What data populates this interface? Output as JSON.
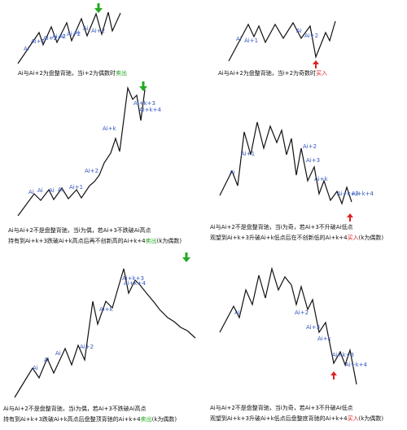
{
  "colors": {
    "line": "#111111",
    "label": "#3355bb",
    "sell": "#22aa22",
    "buy": "#dd2222"
  },
  "panels": [
    {
      "id": "p1",
      "labels": [
        {
          "t": "Ai"
        },
        {
          "t": "Ai+1"
        },
        {
          "t": "Ai+2"
        },
        {
          "t": "Ai+2"
        },
        {
          "t": "Ai"
        },
        {
          "t": "Ai+2"
        },
        {
          "t": "Ai"
        },
        {
          "t": "Ai"
        },
        {
          "t": "Ai+2"
        }
      ],
      "arrow": "down",
      "caption": {
        "lines": [
          {
            "a": "Ai与Ai+2为盘整背驰，当i+2为偶数时",
            "h": "卖出",
            "hc": "sell",
            "b": ""
          }
        ]
      }
    },
    {
      "id": "p2",
      "labels": [
        {
          "t": "Ai"
        },
        {
          "t": "Ai+1"
        },
        {
          "t": "Ai"
        },
        {
          "t": "Ai+2"
        }
      ],
      "arrow": "up",
      "caption": {
        "lines": [
          {
            "a": "Ai与Ai+2为盘整背驰，当i+2为奇数时",
            "h": "买入",
            "hc": "buy",
            "b": ""
          }
        ]
      }
    },
    {
      "id": "p3",
      "labels": [
        {
          "t": "Ai"
        },
        {
          "t": "Ai"
        },
        {
          "t": "Ai"
        },
        {
          "t": "Ai"
        },
        {
          "t": "Ai+1"
        },
        {
          "t": "Ai+2"
        },
        {
          "t": "Ai+k"
        },
        {
          "t": "Ai+k+3"
        },
        {
          "t": "Ai+k+4"
        }
      ],
      "arrow": "down",
      "caption": {
        "lines": [
          {
            "a": "Ai与Ai+2不是盘整背驰，当i为偶，若Ai+3不跌破Ai高点",
            "h": "",
            "hc": "",
            "b": ""
          },
          {
            "a": "持有到Ai+k+3跌破Ai+k高点后再不创新高的Ai+k+4",
            "h": "卖出",
            "hc": "sell",
            "b": "(k为偶数)"
          }
        ]
      }
    },
    {
      "id": "p4",
      "labels": [
        {
          "t": "Ai"
        },
        {
          "t": "Ai+1"
        },
        {
          "t": "Ai+2"
        },
        {
          "t": "Ai+3"
        },
        {
          "t": "Ai+k"
        },
        {
          "t": "Ai+k+3"
        },
        {
          "t": "Ai+k+4"
        }
      ],
      "arrow": "up",
      "caption": {
        "lines": [
          {
            "a": "Ai与Ai+2不是盘整背驰，当i为奇，若Ai+3不升破Ai低点",
            "h": "",
            "hc": "",
            "b": ""
          },
          {
            "a": "观望到Ai+k+3升破Ai+k低点后在不创新低的Ai+k+4",
            "h": "买入",
            "hc": "buy",
            "b": "(k为偶数)"
          }
        ]
      }
    },
    {
      "id": "p5",
      "labels": [
        {
          "t": "Ai"
        },
        {
          "t": "Ai"
        },
        {
          "t": "Ai"
        },
        {
          "t": "Ai+2"
        },
        {
          "t": "Ai+k"
        },
        {
          "t": "Ai+k+3"
        },
        {
          "t": "Ai+k+4"
        }
      ],
      "arrow": "down",
      "caption": {
        "lines": [
          {
            "a": "Ai与Ai+2不是盘整背驰，当i为偶，若Ai+3不跌破Ai高点",
            "h": "",
            "hc": "",
            "b": ""
          },
          {
            "a": "持有到Ai+k+3跌破Ai+k高点后盘整顶背驰的Ai+k+4",
            "h": "卖出",
            "hc": "sell",
            "b": "(k为偶数)"
          }
        ]
      }
    },
    {
      "id": "p6",
      "labels": [
        {
          "t": "Ai"
        },
        {
          "t": "Ai+2"
        },
        {
          "t": "Ai+3"
        },
        {
          "t": "Ai+k"
        },
        {
          "t": "Ai+k+3"
        },
        {
          "t": "Ai+k+4"
        }
      ],
      "arrow": "up",
      "caption": {
        "lines": [
          {
            "a": "Ai与Ai+2不是盘整背驰，当i为奇，若Ai+3不升破Ai低点",
            "h": "",
            "hc": "",
            "b": ""
          },
          {
            "a": "观望到Ai+k+3升破Ai+k低点后盘整底背驰的Ai+k+4",
            "h": "买入",
            "hc": "buy",
            "b": "(k为偶数)"
          }
        ]
      }
    }
  ]
}
